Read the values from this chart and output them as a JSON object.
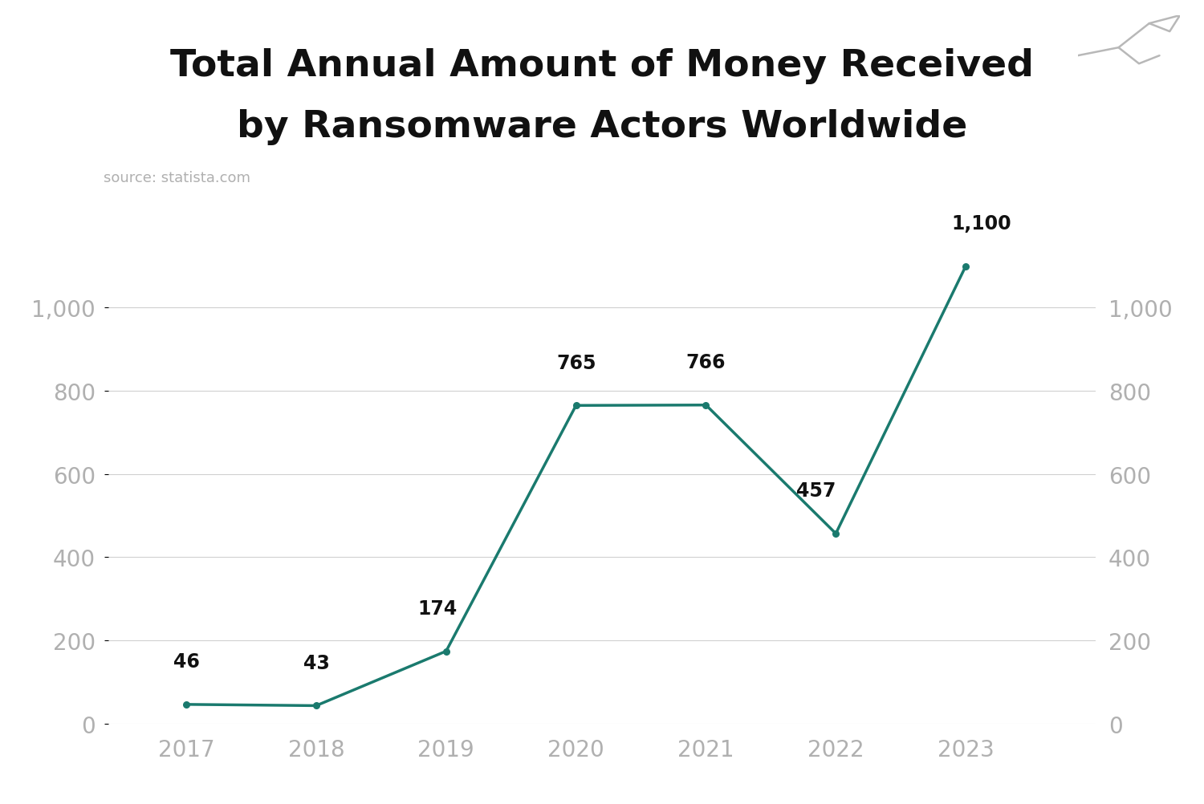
{
  "title_line1": "Total Annual Amount of Money Received",
  "title_line2": "by Ransomware Actors Worldwide",
  "source": "source: statista.com",
  "years": [
    2017,
    2018,
    2019,
    2020,
    2021,
    2022,
    2023
  ],
  "values": [
    46,
    43,
    174,
    765,
    766,
    457,
    1100
  ],
  "labels": [
    "46",
    "43",
    "174",
    "765",
    "766",
    "457",
    "1,100"
  ],
  "line_color": "#1a7a6e",
  "label_color": "#111111",
  "tick_color": "#b0b0b0",
  "grid_color": "#d0d0d0",
  "bg_color": "#ffffff",
  "ylim": [
    0,
    1200
  ],
  "yticks": [
    0,
    200,
    400,
    600,
    800,
    1000
  ],
  "title_fontsize": 34,
  "source_fontsize": 13,
  "label_fontsize": 17,
  "tick_fontsize": 20,
  "xlim_left": 2016.4,
  "xlim_right": 2024.0
}
